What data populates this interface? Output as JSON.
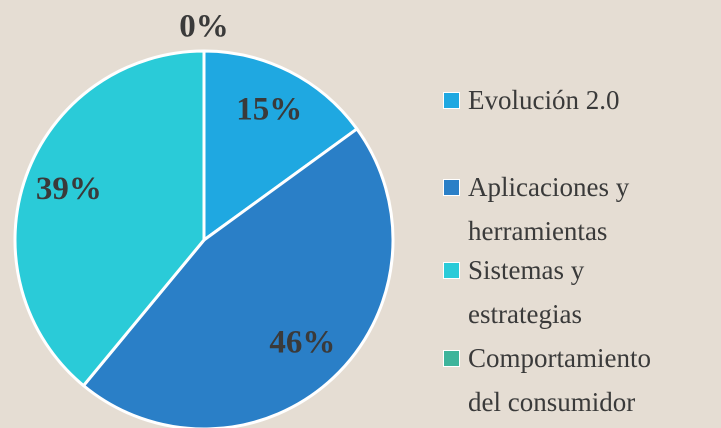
{
  "chart_data": {
    "type": "pie",
    "categories": [
      "Evolución 2.0",
      "Aplicaciones y herramientas",
      "Sistemas y estrategias",
      "Comportamiento del consumidor"
    ],
    "values": [
      15,
      46,
      39,
      0
    ],
    "value_labels": [
      "15%",
      "46%",
      "39%",
      "0%"
    ],
    "colors": [
      "#1fa8e1",
      "#2a7fc7",
      "#2acbd8",
      "#3db49b"
    ],
    "legend": "right"
  }
}
